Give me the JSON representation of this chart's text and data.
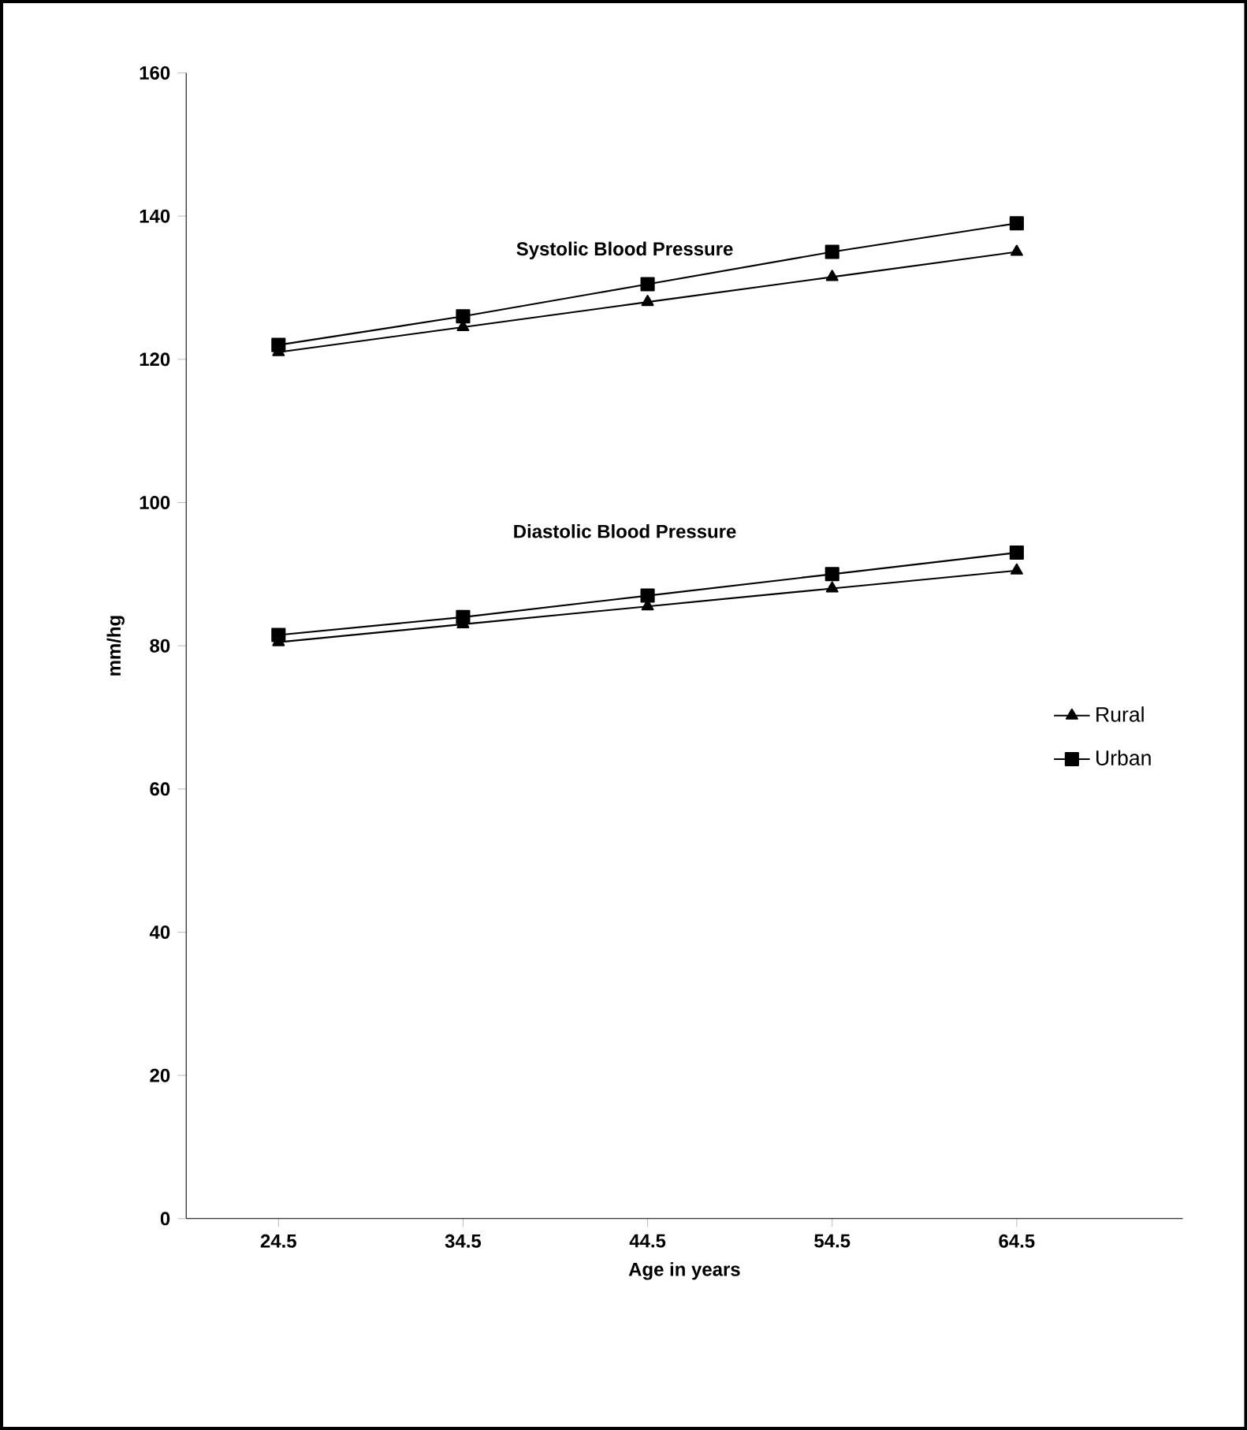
{
  "chart_data": {
    "type": "line",
    "xlabel": "Age in years",
    "ylabel": "mm/hg",
    "categories": [
      "24.5",
      "34.5",
      "44.5",
      "54.5",
      "64.5"
    ],
    "series": [
      {
        "name": "Rural",
        "color": "#000000",
        "marker": "triangle",
        "values": [
          121,
          124.5,
          128,
          131.5,
          135
        ]
      },
      {
        "name": "Urban",
        "color": "#000000",
        "marker": "square",
        "values": [
          122,
          126,
          130.5,
          135,
          139
        ]
      },
      {
        "color": "#000000",
        "marker": "triangle",
        "values": [
          80.5,
          83,
          85.5,
          88,
          90.5
        ]
      },
      {
        "color": "#000000",
        "marker": "square",
        "values": [
          81.5,
          84,
          87,
          90,
          93
        ]
      }
    ],
    "ylim": [
      0,
      160
    ],
    "yticks": [
      0,
      20,
      40,
      60,
      80,
      100,
      120,
      140,
      160
    ],
    "annotations": [
      "Systolic Blood Pressure",
      "Diastolic Blood Pressure"
    ],
    "legend": "right",
    "grid": false,
    "line_style": "solid"
  }
}
